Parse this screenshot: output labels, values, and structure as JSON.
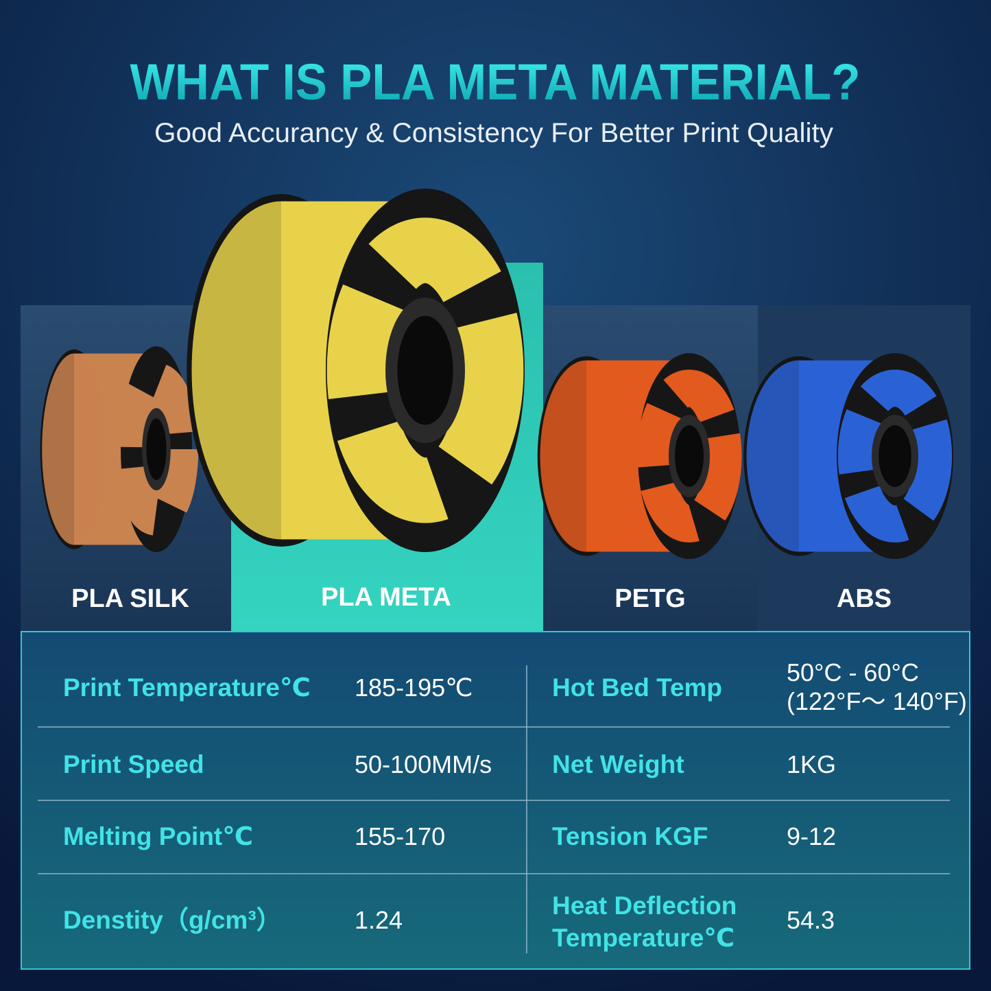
{
  "header": {
    "title": "WHAT IS PLA META MATERIAL?",
    "subtitle": "Good Accurancy & Consistency For Better Print Quality"
  },
  "products": [
    "PLA SILK",
    "PLA META",
    "PETG",
    "ABS"
  ],
  "table": {
    "rows": [
      [
        {
          "label": "Print Temperature℃",
          "value": "185-195℃"
        },
        {
          "label": "Hot Bed Temp",
          "value": [
            "50°C - 60°C",
            "(122°F～ 140°F)"
          ]
        }
      ],
      [
        {
          "label": "Print Speed",
          "value": "50-100MM/s"
        },
        {
          "label": "Net Weight",
          "value": "1KG"
        }
      ],
      [
        {
          "label": "Melting Point℃",
          "value": "155-170"
        },
        {
          "label": "Tension KGF",
          "value": "9-12"
        }
      ],
      [
        {
          "label": "Denstity（g/cm³）",
          "value": "1.24"
        },
        {
          "label": [
            "Heat Deflection",
            "Temperature℃"
          ],
          "value": "54.3"
        }
      ]
    ]
  }
}
